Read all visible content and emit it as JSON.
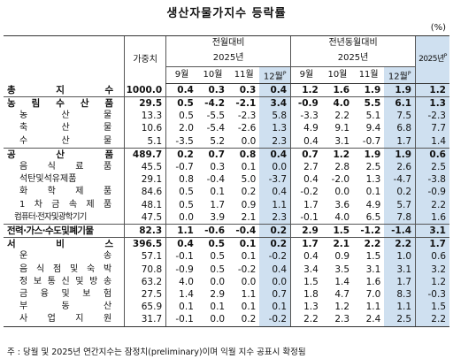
{
  "title": "생산자물가지수 등락률",
  "unit": "(%)",
  "note": "주 : 당월 및 2025년 연간지수는 잠정치(preliminary)이며 익월 지수 공표시 확정됨",
  "header": {
    "weight": "가중치",
    "mom": "전월대비",
    "yoy": "전년동월대비",
    "year": "2025년",
    "annual": "2025년",
    "annual_sup": "P",
    "months": [
      "9월",
      "10월",
      "11월",
      "12월"
    ],
    "month_sup": "P"
  },
  "chart_data": {
    "type": "table",
    "columns": [
      "가중치",
      "전월대비 9월",
      "전월대비 10월",
      "전월대비 11월",
      "전월대비 12월P",
      "전년동월대비 9월",
      "전년동월대비 10월",
      "전년동월대비 11월",
      "전년동월대비 12월P",
      "2025년P"
    ],
    "rows": [
      {
        "name": "총 지 수",
        "level": "major",
        "values": [
          "1000.0",
          "0.4",
          "0.3",
          "0.3",
          "0.4",
          "1.2",
          "1.6",
          "1.9",
          "1.9",
          "1.2"
        ]
      },
      {
        "name": "농 림 수 산 품",
        "level": "major",
        "values": [
          "29.5",
          "0.5",
          "-4.2",
          "-2.1",
          "3.4",
          "-0.9",
          "4.0",
          "5.5",
          "6.1",
          "1.3"
        ]
      },
      {
        "name": "농 산 물",
        "level": "sub",
        "values": [
          "13.3",
          "0.5",
          "-5.5",
          "-2.3",
          "5.8",
          "-3.3",
          "2.2",
          "5.1",
          "7.5",
          "-2.3"
        ]
      },
      {
        "name": "축 산 물",
        "level": "sub",
        "values": [
          "10.6",
          "2.0",
          "-5.4",
          "-2.6",
          "1.3",
          "4.9",
          "9.1",
          "9.4",
          "6.8",
          "7.7"
        ]
      },
      {
        "name": "수 산 물",
        "level": "sub",
        "values": [
          "5.1",
          "-3.5",
          "5.2",
          "0.0",
          "2.3",
          "0.4",
          "3.1",
          "-0.7",
          "1.7",
          "1.4"
        ]
      },
      {
        "name": "공 산 품",
        "level": "major",
        "values": [
          "489.7",
          "0.2",
          "0.7",
          "0.8",
          "0.4",
          "0.7",
          "1.2",
          "1.9",
          "1.9",
          "0.6"
        ]
      },
      {
        "name": "음 식 료 품",
        "level": "sub",
        "values": [
          "45.5",
          "-0.7",
          "0.3",
          "0.1",
          "0.0",
          "2.7",
          "2.8",
          "2.5",
          "2.6",
          "2.5"
        ]
      },
      {
        "name": "석탄및석유제품",
        "level": "sub",
        "values": [
          "29.1",
          "0.8",
          "-0.4",
          "5.0",
          "-3.7",
          "0.4",
          "-2.0",
          "1.3",
          "-4.7",
          "-3.8"
        ]
      },
      {
        "name": "화 학 제 품",
        "level": "sub",
        "values": [
          "84.6",
          "0.5",
          "0.1",
          "0.2",
          "0.4",
          "-0.2",
          "0.0",
          "0.1",
          "0.2",
          "-0.9"
        ]
      },
      {
        "name": "1 차 금 속 제 품",
        "level": "sub",
        "values": [
          "48.1",
          "0.5",
          "1.7",
          "0.9",
          "1.1",
          "1.7",
          "3.6",
          "4.9",
          "5.7",
          "2.2"
        ]
      },
      {
        "name": "컴퓨터·전자및광학기기",
        "level": "sub",
        "values": [
          "47.5",
          "0.0",
          "3.9",
          "2.1",
          "2.3",
          "-0.1",
          "4.0",
          "6.5",
          "7.8",
          "1.6"
        ]
      },
      {
        "name": "전력·가스·수도및폐기물",
        "level": "major",
        "values": [
          "82.3",
          "1.1",
          "-0.6",
          "-0.4",
          "0.2",
          "2.9",
          "1.5",
          "-1.2",
          "-1.4",
          "3.1"
        ]
      },
      {
        "name": "서 비 스",
        "level": "major",
        "values": [
          "396.5",
          "0.4",
          "0.5",
          "0.1",
          "0.2",
          "1.7",
          "2.1",
          "2.2",
          "2.2",
          "1.7"
        ]
      },
      {
        "name": "운 송",
        "level": "sub",
        "values": [
          "57.1",
          "-0.1",
          "0.5",
          "0.1",
          "-0.2",
          "0.4",
          "0.9",
          "1.5",
          "1.0",
          "0.6"
        ]
      },
      {
        "name": "음 식 점 및 숙 박",
        "level": "sub",
        "values": [
          "70.8",
          "-0.9",
          "0.5",
          "-0.2",
          "0.4",
          "3.4",
          "3.5",
          "3.1",
          "3.1",
          "3.2"
        ]
      },
      {
        "name": "정 보 통 신 및 방 송",
        "level": "sub",
        "values": [
          "63.2",
          "4.0",
          "0.0",
          "0.0",
          "0.0",
          "1.5",
          "1.4",
          "1.6",
          "1.7",
          "1.2"
        ]
      },
      {
        "name": "금 융 및 보 험",
        "level": "sub",
        "values": [
          "27.5",
          "1.4",
          "2.9",
          "1.1",
          "0.7",
          "1.8",
          "4.7",
          "7.0",
          "8.3",
          "-0.3"
        ]
      },
      {
        "name": "부 동 산",
        "level": "sub",
        "values": [
          "65.9",
          "0.1",
          "0.1",
          "0.1",
          "0.1",
          "1.3",
          "1.2",
          "1.1",
          "1.1",
          "1.5"
        ]
      },
      {
        "name": "사 업 지 원",
        "level": "sub",
        "values": [
          "31.7",
          "-0.1",
          "0.0",
          "0.2",
          "-0.2",
          "2.2",
          "2.3",
          "2.4",
          "2.5",
          "2.2"
        ]
      }
    ]
  }
}
